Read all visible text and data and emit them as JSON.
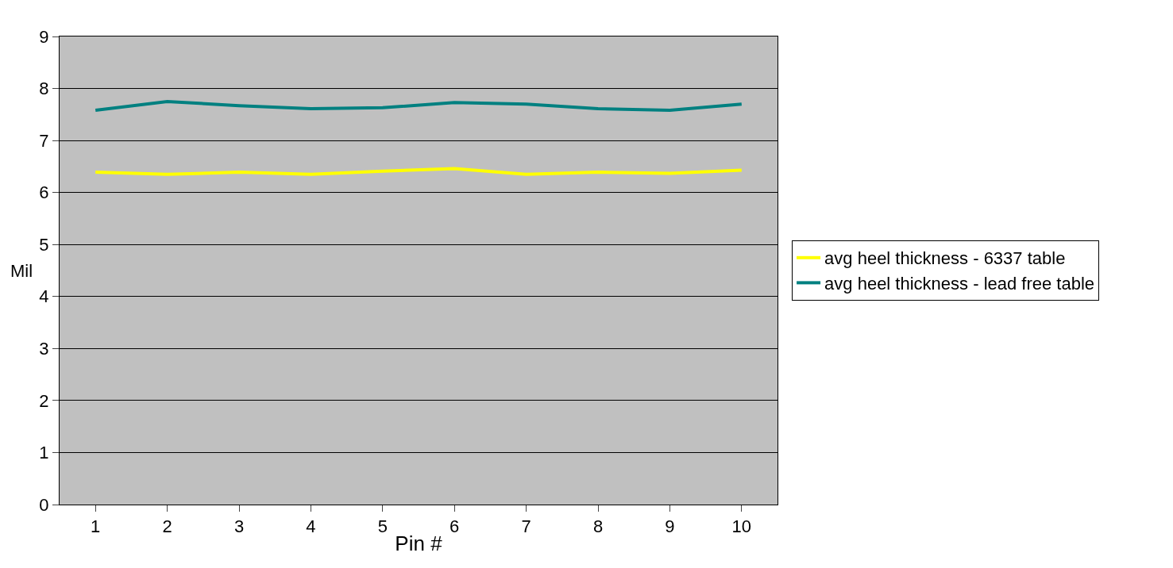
{
  "chart_data": {
    "type": "line",
    "xlabel": "Pin #",
    "ylabel": "Mil",
    "categories": [
      "1",
      "2",
      "3",
      "4",
      "5",
      "6",
      "7",
      "8",
      "9",
      "10"
    ],
    "series": [
      {
        "name": "avg heel thickness - 6337 table",
        "color": "#ffff00",
        "values": [
          6.39,
          6.35,
          6.39,
          6.35,
          6.41,
          6.46,
          6.35,
          6.39,
          6.37,
          6.43
        ]
      },
      {
        "name": "avg heel thickness - lead free table",
        "color": "#008080",
        "values": [
          7.58,
          7.75,
          7.67,
          7.61,
          7.63,
          7.73,
          7.7,
          7.61,
          7.58,
          7.7
        ]
      }
    ],
    "ylim": [
      0,
      9
    ],
    "yticks": [
      0,
      1,
      2,
      3,
      4,
      5,
      6,
      7,
      8,
      9
    ],
    "grid": "y",
    "legend": "right",
    "marker": "none",
    "line_style": "solid"
  }
}
